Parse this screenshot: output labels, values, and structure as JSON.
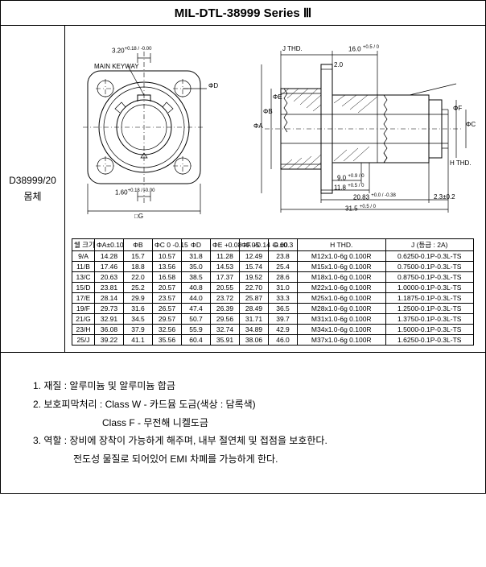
{
  "title": "MIL-DTL-38999  Series  Ⅲ",
  "side": {
    "line1": "D38999/20",
    "line2": "몸체"
  },
  "diagram": {
    "main_keyway": "MAIN KEYWAY",
    "dim_320": "3.20",
    "dim_320_tol": "+0.18 / -0.00",
    "phi_d": "ΦD",
    "dim_160": "1.60",
    "dim_160_tol": "+0.18 / -0.00",
    "sq_g": "□G",
    "j_thd": "J THD.",
    "dim_160_r": "16.0",
    "dim_160_r_tol": "+0.5 / 0",
    "dim_20": "2.0",
    "phi_e": "ΦE",
    "phi_b": "ΦB",
    "phi_a": "ΦA",
    "phi_f": "ΦF",
    "phi_c": "ΦC",
    "h_thd": "H THD.",
    "dim_90": "9.0",
    "dim_90_tol": "+0.9 / 0",
    "dim_118": "11.8",
    "dim_118_tol": "+0.5 / 0",
    "dim_2083": "20.83",
    "dim_2083_tol": "+0.0 / -0.38",
    "dim_23": "2.3±0.2",
    "dim_315": "31.5",
    "dim_315_tol": "+0.5 / 0"
  },
  "table": {
    "headers": [
      "쉘 크기",
      "ΦA±0.10",
      "ΦB",
      "ΦC 0 -0.15",
      "ΦD",
      "ΦE +0.08 -0.05",
      "ΦF +0.14 -0.00",
      "G ±0.3",
      "H THD.",
      "J (등급 : 2A)"
    ],
    "rows": [
      [
        "9/A",
        "14.28",
        "15.7",
        "10.57",
        "31.8",
        "11.28",
        "12.49",
        "23.8",
        "M12x1.0-6g 0.100R",
        "0.6250-0.1P-0.3L-TS"
      ],
      [
        "11/B",
        "17.46",
        "18.8",
        "13.56",
        "35.0",
        "14.53",
        "15.74",
        "25.4",
        "M15x1.0-6g 0.100R",
        "0.7500-0.1P-0.3L-TS"
      ],
      [
        "13/C",
        "20.63",
        "22.0",
        "16.58",
        "38.5",
        "17.37",
        "19.52",
        "28.6",
        "M18x1.0-6g 0.100R",
        "0.8750-0.1P-0.3L-TS"
      ],
      [
        "15/D",
        "23.81",
        "25.2",
        "20.57",
        "40.8",
        "20.55",
        "22.70",
        "31.0",
        "M22x1.0-6g 0.100R",
        "1.0000-0.1P-0.3L-TS"
      ],
      [
        "17/E",
        "28.14",
        "29.9",
        "23.57",
        "44.0",
        "23.72",
        "25.87",
        "33.3",
        "M25x1.0-6g 0.100R",
        "1.1875-0.1P-0.3L-TS"
      ],
      [
        "19/F",
        "29.73",
        "31.6",
        "26.57",
        "47.4",
        "26.39",
        "28.49",
        "36.5",
        "M28x1.0-6g 0.100R",
        "1.2500-0.1P-0.3L-TS"
      ],
      [
        "21/G",
        "32.91",
        "34.5",
        "29.57",
        "50.7",
        "29.56",
        "31.71",
        "39.7",
        "M31x1.0-6g 0.100R",
        "1.3750-0.1P-0.3L-TS"
      ],
      [
        "23/H",
        "36.08",
        "37.9",
        "32.56",
        "55.9",
        "32.74",
        "34.89",
        "42.9",
        "M34x1.0-6g 0.100R",
        "1.5000-0.1P-0.3L-TS"
      ],
      [
        "25/J",
        "39.22",
        "41.1",
        "35.56",
        "60.4",
        "35.91",
        "38.06",
        "46.0",
        "M37x1.0-6g 0.100R",
        "1.6250-0.1P-0.3L-TS"
      ]
    ]
  },
  "notes": {
    "n1": "1.  재질 : 알루미늄 및 알루미늄 합금",
    "n2a": "2.  보호피막처리 : Class W - 카드뮴 도금(색상 : 담록색)",
    "n2b": "Class F - 무전해 니켈도금",
    "n3a": "3.  역할 : 장비에 장착이 가능하게 해주며, 내부 절연체 및 접점을 보호한다.",
    "n3b": "전도성 물질로 되어있어 EMI 차폐를 가능하게 한다."
  }
}
